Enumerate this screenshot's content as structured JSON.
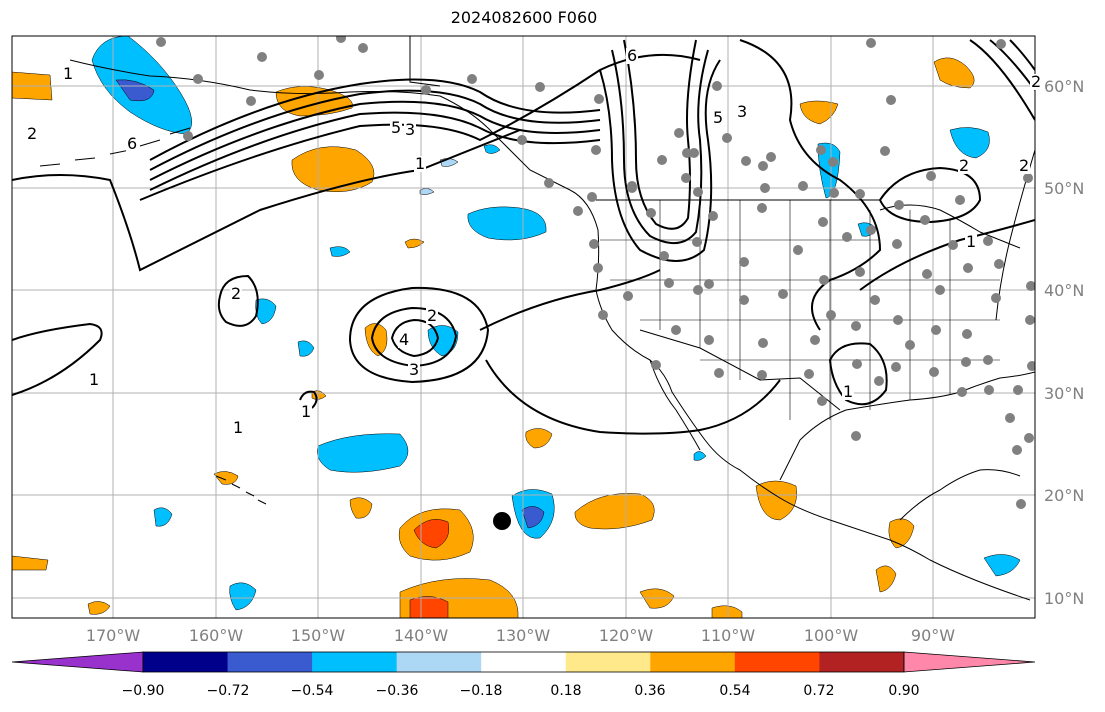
{
  "title": "2024082600 F060",
  "latitude_labels": [
    "60°N",
    "50°N",
    "40°N",
    "30°N",
    "20°N",
    "10°N"
  ],
  "longitude_labels": [
    "170°W",
    "160°W",
    "150°W",
    "140°W",
    "130°W",
    "120°W",
    "110°W",
    "100°W",
    "90°W"
  ],
  "colorbar": {
    "labels": [
      "−0.90",
      "−0.72",
      "−0.54",
      "−0.36",
      "−0.18",
      "0.18",
      "0.36",
      "0.54",
      "0.72",
      "0.90"
    ],
    "colors": [
      "#9932cc",
      "#00008b",
      "#3a5bd0",
      "#00bfff",
      "#add8f5",
      "#ffffff",
      "#ffe98a",
      "#ffa500",
      "#ff4500",
      "#b22222",
      "#ff88aa"
    ]
  },
  "contour_labels": [
    "1",
    "2",
    "6",
    "5",
    "3",
    "1",
    "2",
    "3",
    "4",
    "2",
    "1",
    "1",
    "1",
    "6",
    "5",
    "3",
    "2",
    "2",
    "1",
    "1",
    "2"
  ],
  "marker": "storm-center-dot"
}
